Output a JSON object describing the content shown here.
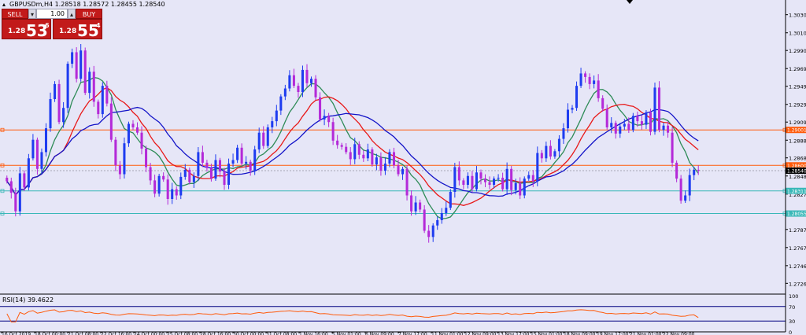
{
  "header": {
    "symbol_info": "GBPUSDm,H4  1.28518 1.28572 1.28455 1.28540",
    "collapse_icon": "triangle-up-icon"
  },
  "trade_panel": {
    "sell_label": "SELL",
    "buy_label": "BUY",
    "lot": "1.00",
    "minus": "▾",
    "plus": "▴",
    "sell_prefix": "1.28",
    "sell_big": "53",
    "sell_sup": "6",
    "buy_prefix": "1.28",
    "buy_big": "55",
    "buy_sup": "4"
  },
  "price_axis": {
    "ticks": [
      "1.30305",
      "1.30100",
      "1.29900",
      "1.29695",
      "1.29495",
      "1.29290",
      "1.29090",
      "1.28885",
      "1.28685",
      "1.28480",
      "1.28275",
      "1.28075",
      "1.27875",
      "1.27670",
      "1.27465",
      "1.27265"
    ],
    "tags": [
      {
        "label": "1.29001",
        "color": "#FF5A0A"
      },
      {
        "label": "1.28600",
        "color": "#FF5A0A"
      },
      {
        "label": "1.28540",
        "color": "#000000"
      },
      {
        "label": "1.28311",
        "color": "#3AB8B8"
      },
      {
        "label": "1.28055",
        "color": "#3AB8B8"
      }
    ]
  },
  "time_axis": {
    "labels": [
      "16 Oct 2019",
      "18 Oct 00:00",
      "21 Oct 08:00",
      "22 Oct 16:00",
      "24 Oct 00:00",
      "25 Oct 08:00",
      "28 Oct 16:00",
      "30 Oct 00:00",
      "31 Oct 08:00",
      "1 Nov 16:00",
      "5 Nov 01:00",
      "6 Nov 09:00",
      "7 Nov 17:00",
      "11 Nov 01:00",
      "12 Nov 09:00",
      "13 Nov 17:00",
      "15 Nov 01:00",
      "18 Nov 09:00",
      "19 Nov 17:00",
      "21 Nov 01:00",
      "22 Nov 09:00"
    ]
  },
  "rsi_panel": {
    "title": "RSI(14) 39.4622",
    "ticks": [
      "100",
      "70",
      "30",
      "0"
    ],
    "color": "#FF5A0A",
    "level_color": "#000080"
  },
  "colors": {
    "background": "#E6E6F7",
    "bull": "#1E3CF0",
    "bear": "#B42AD8",
    "ma_fast": "#2E8B57",
    "ma_mid": "#E81818",
    "ma_slow": "#1414C8",
    "hline_orange": "#FF5A0A",
    "hline_teal": "#3AB8B8"
  },
  "chart_data": {
    "type": "candlestick",
    "symbol": "GBPUSDm",
    "timeframe": "H4",
    "ohlc_last": {
      "open": 1.28518,
      "high": 1.28572,
      "low": 1.28455,
      "close": 1.2854
    },
    "ylim": [
      1.2717,
      1.304
    ],
    "rsi_value": 39.4622,
    "rsi_levels": [
      30,
      70
    ],
    "horizontal_lines": [
      1.29001,
      1.286,
      1.28311,
      1.28055
    ],
    "closes": [
      1.2842,
      1.2829,
      1.2808,
      1.2851,
      1.2835,
      1.2868,
      1.2889,
      1.2856,
      1.2875,
      1.2902,
      1.2935,
      1.2952,
      1.2909,
      1.2925,
      1.2975,
      1.2988,
      1.2958,
      1.299,
      1.2942,
      1.2966,
      1.2932,
      1.2918,
      1.295,
      1.293,
      1.2889,
      1.286,
      1.285,
      1.2885,
      1.2907,
      1.2903,
      1.2897,
      1.2879,
      1.2858,
      1.2843,
      1.2828,
      1.2848,
      1.2844,
      1.2822,
      1.2833,
      1.2826,
      1.2847,
      1.2855,
      1.2841,
      1.2848,
      1.2875,
      1.2863,
      1.2857,
      1.2845,
      1.2866,
      1.2853,
      1.2838,
      1.2862,
      1.2866,
      1.288,
      1.2862,
      1.2864,
      1.2854,
      1.2878,
      1.2897,
      1.2882,
      1.2903,
      1.291,
      1.2922,
      1.2938,
      1.2947,
      1.2962,
      1.295,
      1.2943,
      1.2968,
      1.2953,
      1.2958,
      1.2937,
      1.2912,
      1.2916,
      1.2909,
      1.2888,
      1.2883,
      1.2881,
      1.2875,
      1.2867,
      1.2884,
      1.2872,
      1.2868,
      1.2878,
      1.2861,
      1.2869,
      1.2854,
      1.2862,
      1.2875,
      1.286,
      1.285,
      1.2856,
      1.2826,
      1.2808,
      1.2818,
      1.281,
      1.2786,
      1.2779,
      1.2792,
      1.2798,
      1.2806,
      1.2812,
      1.283,
      1.2858,
      1.2843,
      1.2838,
      1.2848,
      1.2833,
      1.2852,
      1.2845,
      1.2841,
      1.2838,
      1.2845,
      1.2846,
      1.2833,
      1.2856,
      1.2832,
      1.284,
      1.2826,
      1.2845,
      1.2849,
      1.2842,
      1.2874,
      1.2868,
      1.2882,
      1.287,
      1.2876,
      1.289,
      1.2902,
      1.2923,
      1.2925,
      1.295,
      1.2964,
      1.296,
      1.2952,
      1.2956,
      1.2936,
      1.2924,
      1.2903,
      1.2908,
      1.2896,
      1.2904,
      1.2907,
      1.29,
      1.2916,
      1.291,
      1.2906,
      1.292,
      1.2898,
      1.2948,
      1.29,
      1.2905,
      1.2897,
      1.2863,
      1.2845,
      1.282,
      1.2826,
      1.2849,
      1.2855,
      1.2854
    ]
  }
}
